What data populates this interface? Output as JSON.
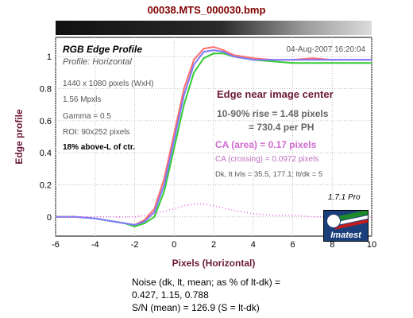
{
  "window_title": "00038.MTS_000030.bmp",
  "chart_data": {
    "type": "line",
    "title": "RGB Edge Profile",
    "subtitle": "Profile: Horizontal",
    "date": "04-Aug-2007 16:20:04",
    "xlabel": "Pixels (Horizontal)",
    "ylabel": "Edge profile",
    "xlim": [
      -6,
      10
    ],
    "ylim": [
      -0.12,
      1.12
    ],
    "xticks": [
      "-6",
      "-4",
      "-2",
      "0",
      "2",
      "4",
      "6",
      "8",
      "10"
    ],
    "yticks": [
      "0",
      "0.2",
      "0.4",
      "0.6",
      "0.8",
      "1"
    ],
    "grid": true,
    "series": [
      {
        "name": "R",
        "color": "#ff6b6b",
        "x": [
          -6,
          -5,
          -4,
          -3,
          -2.5,
          -2,
          -1.5,
          -1,
          -0.5,
          0,
          0.5,
          1,
          1.5,
          2,
          2.5,
          3,
          3.5,
          4,
          5,
          6,
          7,
          8,
          9,
          10
        ],
        "values": [
          0.0,
          0.0,
          -0.01,
          -0.03,
          -0.04,
          -0.05,
          -0.02,
          0.05,
          0.24,
          0.52,
          0.8,
          0.98,
          1.05,
          1.06,
          1.04,
          1.01,
          1.0,
          0.99,
          0.98,
          0.98,
          0.99,
          0.98,
          0.98,
          0.98
        ]
      },
      {
        "name": "G",
        "color": "#33cc33",
        "x": [
          -6,
          -5,
          -4,
          -3,
          -2.5,
          -2,
          -1.5,
          -1,
          -0.5,
          0,
          0.5,
          1,
          1.5,
          2,
          2.5,
          3,
          3.5,
          4,
          5,
          6,
          7,
          8,
          9,
          10
        ],
        "values": [
          0.0,
          0.0,
          -0.01,
          -0.03,
          -0.04,
          -0.06,
          -0.04,
          0.0,
          0.16,
          0.43,
          0.7,
          0.9,
          0.99,
          1.02,
          1.02,
          1.0,
          0.99,
          0.98,
          0.97,
          0.96,
          0.96,
          0.96,
          0.96,
          0.96
        ]
      },
      {
        "name": "B",
        "color": "#7a7aff",
        "x": [
          -6,
          -5,
          -4,
          -3,
          -2.5,
          -2,
          -1.5,
          -1,
          -0.5,
          0,
          0.5,
          1,
          1.5,
          2,
          2.5,
          3,
          3.5,
          4,
          5,
          6,
          7,
          8,
          9,
          10
        ],
        "values": [
          0.0,
          0.0,
          -0.01,
          -0.03,
          -0.04,
          -0.05,
          -0.03,
          0.03,
          0.2,
          0.48,
          0.76,
          0.95,
          1.03,
          1.04,
          1.03,
          1.0,
          0.99,
          0.98,
          0.98,
          0.98,
          0.98,
          0.98,
          0.98,
          0.98
        ]
      },
      {
        "name": "CA",
        "color": "#ee66ee",
        "dotted": true,
        "x": [
          -6,
          -5,
          -4,
          -3,
          -2,
          -1,
          0,
          0.5,
          1,
          1.5,
          2,
          3,
          4,
          5,
          6,
          7,
          8,
          9,
          10
        ],
        "values": [
          0.0,
          0.0,
          0.0,
          0.0,
          0.0,
          0.02,
          0.05,
          0.07,
          0.08,
          0.08,
          0.07,
          0.04,
          0.02,
          0.01,
          0.01,
          0.0,
          0.0,
          0.0,
          0.0
        ]
      }
    ],
    "annotations": {
      "dims": "1440 x 1080 pixels (WxH)",
      "mpxls": "1.56 Mpxls",
      "gamma": "Gamma = 0.5",
      "roi": "ROI: 90x252 pixels",
      "above": "18% above-L of ctr.",
      "edge_near": "Edge near image center",
      "rise": "10-90% rise = 1.48 pixels",
      "per_ph": "= 730.4 per PH",
      "ca_area": "CA (area) = 0.17 pixels",
      "ca_cross": "CA (crossing) = 0.0972 pixels",
      "levels": "Dk, lt lvls = 35.5, 177.1;  lt/dk = 5"
    }
  },
  "version": "1.7.1  Pro",
  "logo_text": "Imatest",
  "stats": {
    "line1": "Noise (dk, lt, mean; as % of lt-dk) =",
    "line2": "0.427,  1.15,  0.788",
    "line3": "S/N (mean) = 126.9  (S = lt-dk)"
  }
}
